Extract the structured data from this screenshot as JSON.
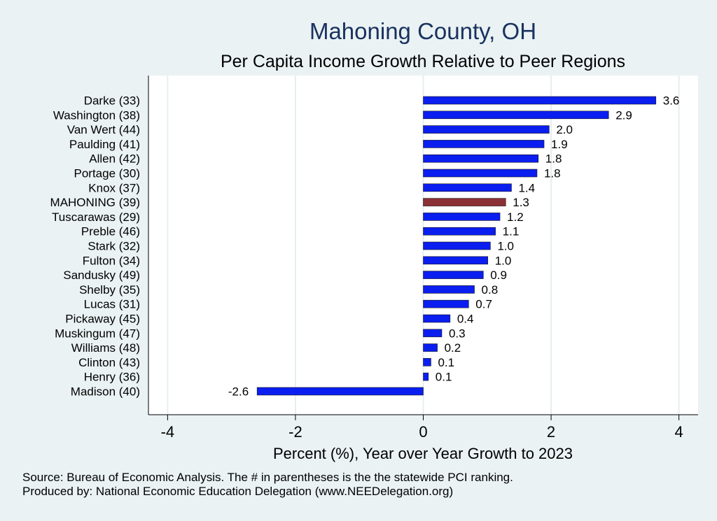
{
  "chart_data": {
    "type": "bar",
    "orientation": "horizontal",
    "title": "Mahoning County, OH",
    "subtitle": "Per Capita Income Growth Relative to Peer Regions",
    "xlabel": "Percent (%), Year over Year Growth to 2023",
    "ylabel": "",
    "xlim": [
      -4.3,
      4.3
    ],
    "xticks": [
      "-4",
      "-2",
      "0",
      "2",
      "4"
    ],
    "grid": true,
    "categories": [
      "Darke (33)",
      "Washington (38)",
      "Van Wert (44)",
      "Paulding (41)",
      "Allen (42)",
      "Portage (30)",
      "Knox (37)",
      "MAHONING (39)",
      "Tuscarawas (29)",
      "Preble (46)",
      "Stark (32)",
      "Fulton (34)",
      "Sandusky (49)",
      "Shelby (35)",
      "Lucas (31)",
      "Pickaway (45)",
      "Muskingum (47)",
      "Williams (48)",
      "Clinton (43)",
      "Henry (36)",
      "Madison (40)"
    ],
    "values": [
      3.64,
      2.9,
      1.97,
      1.89,
      1.8,
      1.78,
      1.38,
      1.29,
      1.2,
      1.13,
      1.05,
      1.01,
      0.94,
      0.8,
      0.71,
      0.42,
      0.29,
      0.22,
      0.12,
      0.08,
      -2.6
    ],
    "value_labels": [
      "3.6",
      "2.9",
      "2.0",
      "1.9",
      "1.8",
      "1.8",
      "1.4",
      "1.3",
      "1.2",
      "1.1",
      "1.0",
      "1.0",
      "0.9",
      "0.8",
      "0.7",
      "0.4",
      "0.3",
      "0.2",
      "0.1",
      "0.1",
      "-2.6"
    ],
    "highlight": "MAHONING (39)",
    "colors": {
      "bar": "#0a1ef0",
      "highlight": "#8b3034",
      "plot_bg": "#ffffff",
      "page_bg": "#eaf2f3",
      "grid": "#e6eef0",
      "title": "#1a3260"
    }
  },
  "notes": {
    "source": "Source: Bureau of Economic Analysis. The # in parentheses is the the statewide PCI ranking.",
    "produced_by": "Produced by: National Economic Education Delegation (www.NEEDelegation.org)"
  }
}
